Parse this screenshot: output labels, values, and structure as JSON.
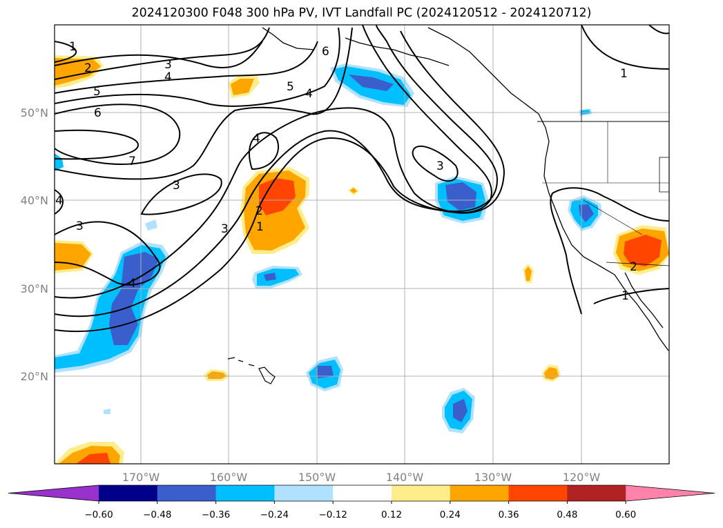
{
  "title": "2024120300 F048 300 hPa PV, IVT Landfall PC (2024120512 - 2024120712)",
  "map": {
    "lat_ticks": [
      "50°N",
      "40°N",
      "30°N",
      "20°N"
    ],
    "lon_ticks": [
      "170°W",
      "160°W",
      "150°W",
      "140°W",
      "130°W",
      "120°W"
    ],
    "contour_labels": [
      "1",
      "2",
      "3",
      "4",
      "5",
      "6",
      "7",
      "6",
      "4",
      "3",
      "4",
      "5",
      "4",
      "3",
      "3",
      "2",
      "1",
      "3",
      "4",
      "1",
      "2",
      "1"
    ]
  },
  "colorbar": {
    "ticks": [
      "−0.60",
      "−0.48",
      "−0.36",
      "−0.24",
      "−0.12",
      "0.12",
      "0.24",
      "0.36",
      "0.48",
      "0.60"
    ],
    "colors": [
      "#9932cc",
      "#00008b",
      "#3a5fcd",
      "#00bfff",
      "#b0e2ff",
      "#ffffff",
      "#ffec8b",
      "#ffa500",
      "#ff4500",
      "#b22222",
      "#ff82ab"
    ]
  }
}
